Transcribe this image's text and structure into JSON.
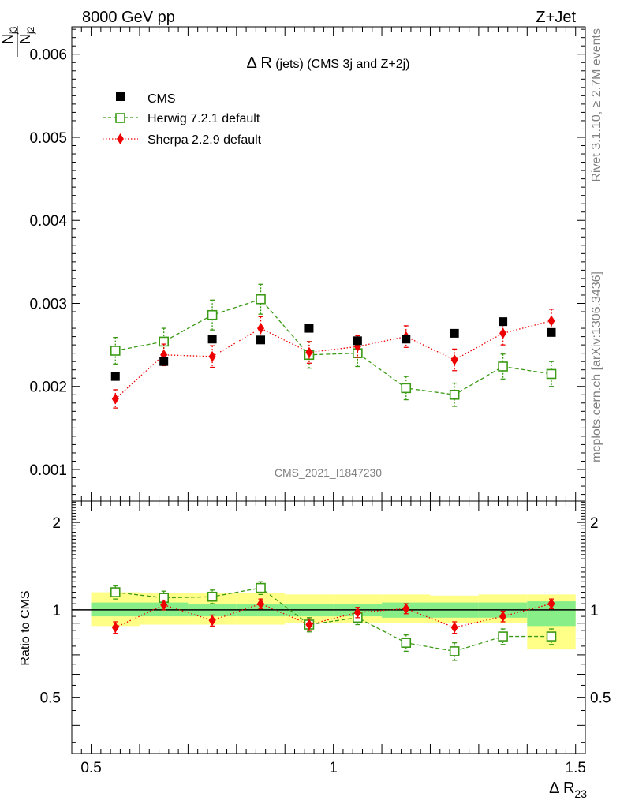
{
  "header": {
    "left": "8000 GeV pp",
    "right": "Z+Jet"
  },
  "side_labels": {
    "rivet": "Rivet 3.1.10, ≥ 2.7M events",
    "mcplots": "mcplots.cern.ch [arXiv:1306.3436]"
  },
  "chart_data": [
    {
      "type": "scatter",
      "title_main": "Δ R",
      "title_rest": " (jets) (CMS 3j and Z+2j)",
      "watermark": "CMS_2021_I1847230",
      "ylabel_parts": [
        "N",
        "j3",
        "N",
        "j2"
      ],
      "ylim": [
        0.00062,
        0.00633
      ],
      "xlim": [
        0.5,
        1.5
      ],
      "yticks": [
        0.001,
        0.002,
        0.003,
        0.004,
        0.005,
        0.006
      ],
      "ytick_labels": [
        "0.001",
        "0.002",
        "0.003",
        "0.004",
        "0.005",
        "0.006"
      ],
      "legend_placement": "top-left",
      "x": [
        0.55,
        0.65,
        0.75,
        0.85,
        0.95,
        1.05,
        1.15,
        1.25,
        1.35,
        1.45
      ],
      "series": [
        {
          "name": "CMS",
          "color": "#000000",
          "marker": "square-filled",
          "values": [
            0.00212,
            0.0023,
            0.00257,
            0.00256,
            0.0027,
            0.00255,
            0.00257,
            0.00264,
            0.00278,
            0.00265
          ]
        },
        {
          "name": "Herwig 7.2.1 default",
          "color": "#3a9a14",
          "marker": "square-open",
          "line": "dashed",
          "values": [
            0.00243,
            0.00254,
            0.00286,
            0.00305,
            0.00238,
            0.0024,
            0.00198,
            0.0019,
            0.00224,
            0.00215
          ],
          "errors": [
            0.00016,
            0.00016,
            0.00018,
            0.00018,
            0.00016,
            0.00016,
            0.00014,
            0.00014,
            0.00015,
            0.00015
          ]
        },
        {
          "name": "Sherpa 2.2.9 default",
          "color": "#ee0000",
          "marker": "diamond-filled",
          "line": "dotted",
          "values": [
            0.00185,
            0.00238,
            0.00236,
            0.0027,
            0.00241,
            0.00248,
            0.0026,
            0.00232,
            0.00264,
            0.00279
          ],
          "errors": [
            0.00011,
            0.00013,
            0.00013,
            0.00014,
            0.00013,
            0.00013,
            0.00013,
            0.00013,
            0.00014,
            0.00014
          ]
        }
      ]
    },
    {
      "type": "scatter",
      "ylabel": "Ratio to CMS",
      "xlabel_main": "Δ R",
      "xlabel_sub": "23",
      "ylim": [
        0.32,
        2.37
      ],
      "xlim": [
        0.5,
        1.5
      ],
      "yticks": [
        0.5,
        1,
        2
      ],
      "ytick_labels": [
        "0.5",
        "1",
        "2"
      ],
      "xticks": [
        0.5,
        1,
        1.5
      ],
      "xtick_labels": [
        "0.5",
        "1",
        "1.5"
      ],
      "reference_line": 1,
      "bands": {
        "x_edges": [
          0.5,
          0.6,
          0.7,
          0.8,
          0.9,
          1.0,
          1.1,
          1.2,
          1.3,
          1.4,
          1.5
        ],
        "yellow_low": [
          0.88,
          0.89,
          0.89,
          0.89,
          0.9,
          0.9,
          0.9,
          0.9,
          0.9,
          0.73
        ],
        "yellow_high": [
          1.15,
          1.14,
          1.14,
          1.14,
          1.13,
          1.13,
          1.13,
          1.12,
          1.13,
          1.13
        ],
        "green_low": [
          0.95,
          0.95,
          0.95,
          0.95,
          0.95,
          0.95,
          0.94,
          0.94,
          0.94,
          0.88
        ],
        "green_high": [
          1.06,
          1.06,
          1.05,
          1.05,
          1.05,
          1.05,
          1.06,
          1.06,
          1.06,
          1.07
        ],
        "yellow_color": "#ffff88",
        "green_color": "#88ee88"
      },
      "x": [
        0.55,
        0.65,
        0.75,
        0.85,
        0.95,
        1.05,
        1.15,
        1.25,
        1.35,
        1.45
      ],
      "series": [
        {
          "name": "Herwig 7.2.1 default",
          "color": "#3a9a14",
          "marker": "square-open",
          "line": "dashed",
          "values": [
            1.15,
            1.1,
            1.11,
            1.19,
            0.89,
            0.94,
            0.77,
            0.72,
            0.81,
            0.81
          ],
          "errors": [
            0.06,
            0.06,
            0.06,
            0.06,
            0.05,
            0.05,
            0.05,
            0.05,
            0.05,
            0.05
          ]
        },
        {
          "name": "Sherpa 2.2.9 default",
          "color": "#ee0000",
          "marker": "diamond-filled",
          "line": "dotted",
          "values": [
            0.87,
            1.04,
            0.92,
            1.05,
            0.89,
            0.98,
            1.01,
            0.87,
            0.95,
            1.05
          ],
          "errors": [
            0.04,
            0.04,
            0.04,
            0.04,
            0.04,
            0.04,
            0.04,
            0.04,
            0.04,
            0.04
          ]
        }
      ]
    }
  ]
}
